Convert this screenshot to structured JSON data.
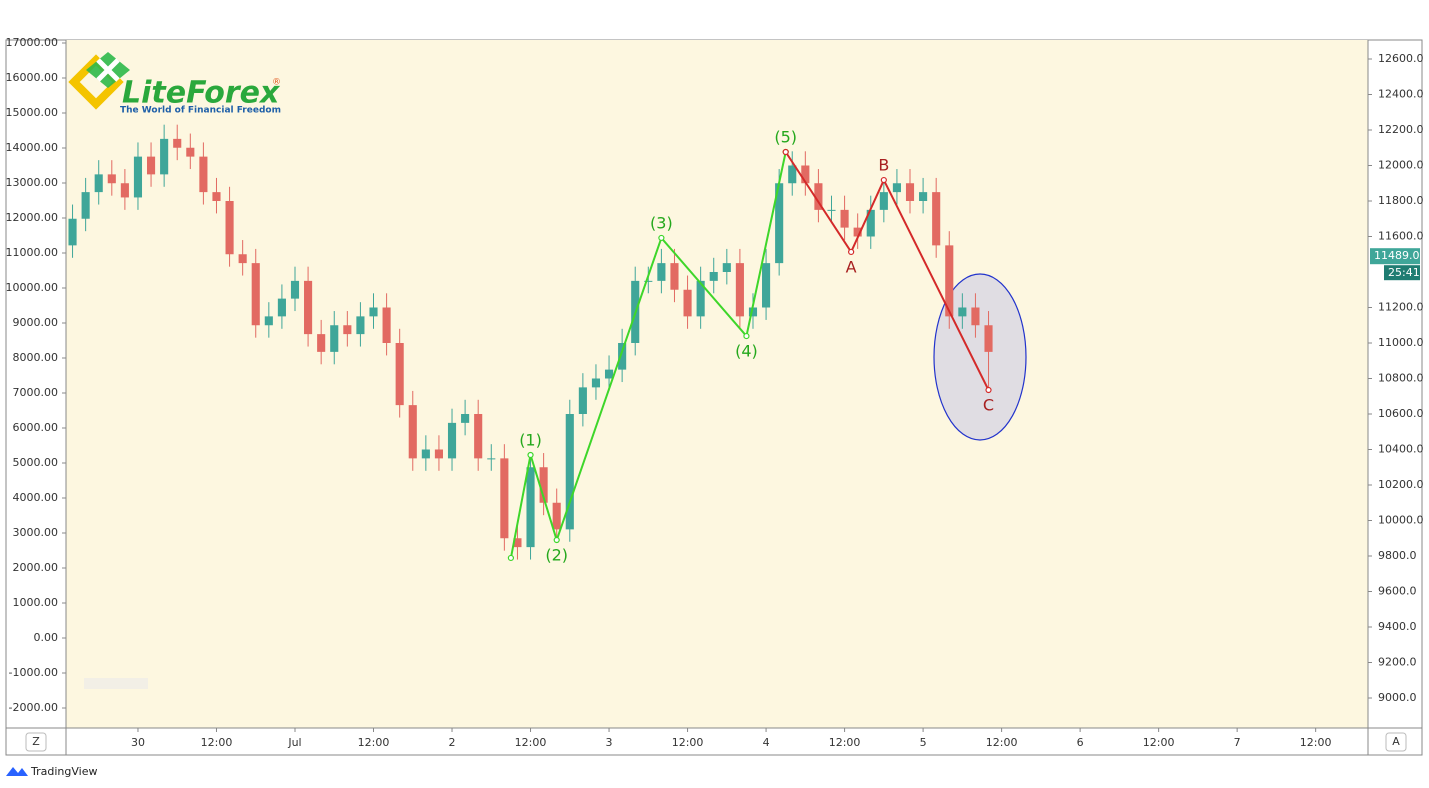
{
  "chart_data": {
    "type": "candlestick",
    "logo": {
      "name": "LiteForex",
      "mark": "®",
      "tagline": "The World of Financial Freedom"
    },
    "xlim": [
      -11,
      188
    ],
    "xticks": [
      {
        "value": 0,
        "label": "30"
      },
      {
        "value": 12,
        "label": "12:00"
      },
      {
        "value": 24,
        "label": "Jul"
      },
      {
        "value": 36,
        "label": "12:00"
      },
      {
        "value": 48,
        "label": "2"
      },
      {
        "value": 60,
        "label": "12:00"
      },
      {
        "value": 72,
        "label": "3"
      },
      {
        "value": 84,
        "label": "12:00"
      },
      {
        "value": 96,
        "label": "4"
      },
      {
        "value": 108,
        "label": "12:00"
      },
      {
        "value": 120,
        "label": "5"
      },
      {
        "value": 132,
        "label": "12:00"
      },
      {
        "value": 144,
        "label": "6"
      },
      {
        "value": 156,
        "label": "12:00"
      },
      {
        "value": 168,
        "label": "7"
      },
      {
        "value": 180,
        "label": "12:00"
      }
    ],
    "ylim": [
      -2571,
      17086
    ],
    "yticks": [
      {
        "value": 17000,
        "label": "17000.00"
      },
      {
        "value": 16000,
        "label": "16000.00"
      },
      {
        "value": 15000,
        "label": "15000.00"
      },
      {
        "value": 14000,
        "label": "14000.00"
      },
      {
        "value": 13000,
        "label": "13000.00"
      },
      {
        "value": 12000,
        "label": "12000.00"
      },
      {
        "value": 11000,
        "label": "11000.00"
      },
      {
        "value": 10000,
        "label": "10000.00"
      },
      {
        "value": 9000,
        "label": "9000.00"
      },
      {
        "value": 8000,
        "label": "8000.00"
      },
      {
        "value": 7000,
        "label": "7000.00"
      },
      {
        "value": 6000,
        "label": "6000.00"
      },
      {
        "value": 5000,
        "label": "5000.00"
      },
      {
        "value": 4000,
        "label": "4000.00"
      },
      {
        "value": 3000,
        "label": "3000.00"
      },
      {
        "value": 2000,
        "label": "2000.00"
      },
      {
        "value": 1000,
        "label": "1000.00"
      },
      {
        "value": 0,
        "label": "0.00"
      },
      {
        "value": -1000,
        "label": "-1000.00"
      },
      {
        "value": -2000,
        "label": "-2000.00"
      }
    ],
    "y2lim": [
      8831,
      12707
    ],
    "y2ticks": [
      {
        "value": 12600,
        "label": "12600.0"
      },
      {
        "value": 12400,
        "label": "12400.0"
      },
      {
        "value": 12200,
        "label": "12200.0"
      },
      {
        "value": 12000,
        "label": "12000.0"
      },
      {
        "value": 11800,
        "label": "11800.0"
      },
      {
        "value": 11600,
        "label": "11600.0"
      },
      {
        "value": 11200,
        "label": "11200.0"
      },
      {
        "value": 11000,
        "label": "11000.0"
      },
      {
        "value": 10800,
        "label": "10800.0"
      },
      {
        "value": 10600,
        "label": "10600.0"
      },
      {
        "value": 10400,
        "label": "10400.0"
      },
      {
        "value": 10200,
        "label": "10200.0"
      },
      {
        "value": 10000,
        "label": "10000.0"
      },
      {
        "value": 9800,
        "label": "9800.0"
      },
      {
        "value": 9600,
        "label": "9600.0"
      },
      {
        "value": 9400,
        "label": "9400.0"
      },
      {
        "value": 9200,
        "label": "9200.0"
      },
      {
        "value": 9000,
        "label": "9000.0"
      }
    ],
    "candles": {
      "axis": "y2",
      "up_color": "#3fa699",
      "down_color": "#e26a62",
      "x": [
        -10,
        -8,
        -6,
        -4,
        -2,
        0,
        2,
        4,
        6,
        8,
        10,
        12,
        14,
        16,
        18,
        20,
        22,
        24,
        26,
        28,
        30,
        32,
        34,
        36,
        38,
        40,
        42,
        44,
        46,
        48,
        50,
        52,
        54,
        56,
        58,
        60,
        62,
        64,
        66,
        68,
        70,
        72,
        74,
        76,
        78,
        80,
        82,
        84,
        86,
        88,
        90,
        92,
        94,
        96,
        98,
        100,
        102,
        104,
        106,
        108,
        110,
        112,
        114,
        116,
        118,
        120,
        122,
        124,
        126,
        128,
        130
      ],
      "open": [
        11550,
        11700,
        11850,
        11950,
        11900,
        11820,
        12050,
        11950,
        12150,
        12100,
        12050,
        11850,
        11800,
        11500,
        11450,
        11100,
        11150,
        11250,
        11350,
        11050,
        10950,
        11100,
        11050,
        11150,
        11200,
        11000,
        10650,
        10350,
        10400,
        10350,
        10550,
        10600,
        10350,
        10350,
        9900,
        9850,
        10300,
        10100,
        9950,
        10600,
        10750,
        10800,
        10850,
        11000,
        11350,
        11350,
        11450,
        11300,
        11150,
        11350,
        11400,
        11450,
        11150,
        11200,
        11450,
        11900,
        12000,
        11900,
        11750,
        11750,
        11650,
        11600,
        11750,
        11850,
        11900,
        11800,
        11850,
        11550,
        11150,
        11200,
        11100
      ],
      "high": [
        11780,
        11930,
        12030,
        12030,
        11980,
        12130,
        12130,
        12230,
        12230,
        12180,
        12130,
        11930,
        11880,
        11580,
        11530,
        11230,
        11330,
        11430,
        11430,
        11130,
        11180,
        11180,
        11230,
        11280,
        11280,
        11080,
        10730,
        10480,
        10480,
        10630,
        10680,
        10680,
        10430,
        10430,
        9980,
        10380,
        10380,
        10180,
        10680,
        10830,
        10880,
        10930,
        11080,
        11430,
        11430,
        11530,
        11530,
        11380,
        11430,
        11480,
        11530,
        11530,
        11280,
        11530,
        11980,
        12080,
        12080,
        11980,
        11830,
        11830,
        11730,
        11830,
        11930,
        11980,
        11980,
        11930,
        11930,
        11630,
        11280,
        11280,
        11180
      ],
      "low": [
        11480,
        11630,
        11780,
        11830,
        11750,
        11750,
        11880,
        11880,
        12030,
        11980,
        11780,
        11730,
        11430,
        11380,
        11030,
        11030,
        11080,
        11180,
        10980,
        10880,
        10880,
        10980,
        10980,
        11080,
        10930,
        10580,
        10280,
        10280,
        10280,
        10280,
        10480,
        10280,
        10280,
        9830,
        9780,
        9780,
        10030,
        9880,
        9880,
        10530,
        10680,
        10730,
        10780,
        10930,
        11280,
        11280,
        11230,
        11080,
        11080,
        11280,
        11330,
        11080,
        11080,
        11130,
        11380,
        11830,
        11830,
        11680,
        11680,
        11580,
        11530,
        11530,
        11680,
        11780,
        11730,
        11730,
        11480,
        11080,
        11080,
        11030,
        10740
      ],
      "close": [
        11700,
        11850,
        11950,
        11900,
        11820,
        12050,
        11950,
        12150,
        12100,
        12050,
        11850,
        11800,
        11500,
        11450,
        11100,
        11150,
        11250,
        11350,
        11050,
        10950,
        11100,
        11050,
        11150,
        11200,
        11000,
        10650,
        10350,
        10400,
        10350,
        10550,
        10600,
        10350,
        10350,
        9900,
        9850,
        10300,
        10100,
        9950,
        10600,
        10750,
        10800,
        10850,
        11000,
        11350,
        11350,
        11450,
        11300,
        11150,
        11350,
        11400,
        11450,
        11150,
        11200,
        11450,
        11900,
        12000,
        11900,
        11750,
        11750,
        11650,
        11600,
        11750,
        11850,
        11900,
        11800,
        11850,
        11550,
        11150,
        11200,
        11100,
        10950
      ]
    },
    "waves": [
      {
        "name": "impulse",
        "color": "#3ed62a",
        "label_color": "#24a81c",
        "axis": "y2",
        "x": [
          57,
          60,
          64,
          80,
          93,
          99
        ],
        "values": [
          9789,
          10369,
          9890,
          11592,
          11039,
          12076
        ],
        "labels": [
          null,
          "(1)",
          "(2)",
          "(3)",
          "(4)",
          "(5)"
        ]
      },
      {
        "name": "correction",
        "color": "#d42a2a",
        "label_color": "#a82020",
        "axis": "y2",
        "x": [
          99,
          109,
          114,
          130
        ],
        "values": [
          12076,
          11513,
          11918,
          10735
        ],
        "labels": [
          null,
          "A",
          "B",
          "C"
        ]
      }
    ],
    "last_price": {
      "value": 11489,
      "label": "11489.0",
      "countdown": "25:41"
    },
    "controls": {
      "left": "Z",
      "right": "A"
    },
    "footer": "TradingView"
  }
}
